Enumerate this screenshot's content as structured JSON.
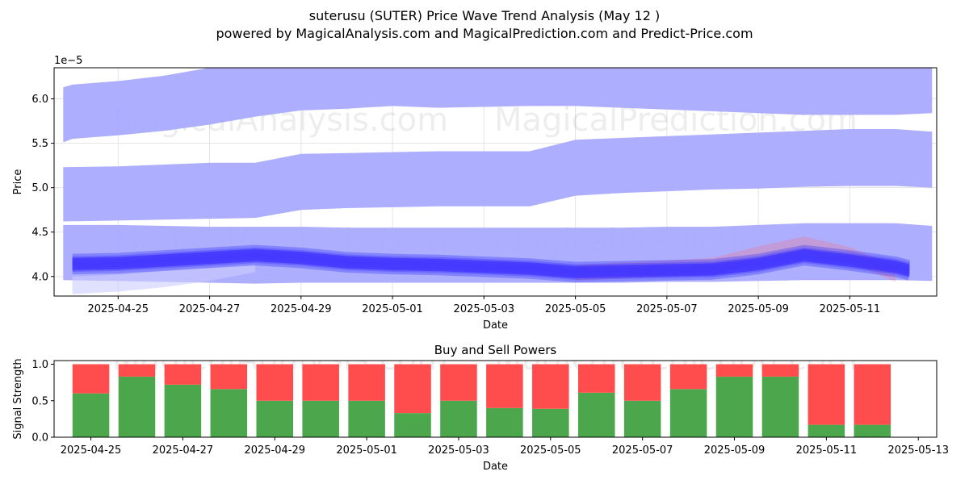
{
  "page": {
    "title": "suterusu (SUTER) Price Wave Trend Analysis (May 12 )",
    "subtitle": "powered by MagicalAnalysis.com and MagicalPrediction.com and Predict-Price.com",
    "watermarks": [
      "MagicalAnalysis.com",
      "MagicalPrediction.com"
    ]
  },
  "chart_data": [
    {
      "type": "area",
      "xlabel": "Date",
      "ylabel": "Price",
      "exponent_label": "1e−5",
      "ylim": [
        3.78,
        6.35
      ],
      "xlim": [
        "2025-04-23.6",
        "2025-05-12.9"
      ],
      "grid": true,
      "yticks": [
        "4.0",
        "4.5",
        "5.0",
        "5.5",
        "6.0"
      ],
      "xticks": [
        "2025-04-25",
        "2025-04-27",
        "2025-04-29",
        "2025-05-01",
        "2025-05-03",
        "2025-05-05",
        "2025-05-07",
        "2025-05-09",
        "2025-05-11"
      ],
      "band_color": "#aaaaff",
      "wave_color": "#3333ff",
      "prediction_color": "#ff6666",
      "bands": [
        {
          "dates": [
            "2025-04-23.8",
            "2025-04-24",
            "2025-04-25",
            "2025-04-26",
            "2025-04-27",
            "2025-04-28",
            "2025-04-29",
            "2025-04-30",
            "2025-05-01",
            "2025-05-02",
            "2025-05-03",
            "2025-05-04",
            "2025-05-05",
            "2025-05-06",
            "2025-05-07",
            "2025-05-08",
            "2025-05-09",
            "2025-05-10",
            "2025-05-11",
            "2025-05-12",
            "2025-05-12.8"
          ],
          "upper": [
            6.13,
            6.16,
            6.2,
            6.26,
            6.35,
            6.4,
            6.4,
            6.4,
            6.4,
            6.4,
            6.4,
            6.4,
            6.4,
            6.4,
            6.4,
            6.4,
            6.4,
            6.4,
            6.4,
            6.4,
            6.36
          ],
          "lower": [
            5.51,
            5.55,
            5.59,
            5.64,
            5.71,
            5.8,
            5.87,
            5.89,
            5.92,
            5.9,
            5.91,
            5.92,
            5.92,
            5.9,
            5.88,
            5.86,
            5.84,
            5.82,
            5.82,
            5.82,
            5.84
          ]
        },
        {
          "dates": [
            "2025-04-23.8",
            "2025-04-25",
            "2025-04-26",
            "2025-04-27",
            "2025-04-28",
            "2025-04-29",
            "2025-04-30",
            "2025-05-01",
            "2025-05-02",
            "2025-05-03",
            "2025-05-04",
            "2025-05-05",
            "2025-05-06",
            "2025-05-07",
            "2025-05-08",
            "2025-05-09",
            "2025-05-10",
            "2025-05-11",
            "2025-05-12",
            "2025-05-12.8"
          ],
          "upper": [
            5.23,
            5.24,
            5.26,
            5.28,
            5.28,
            5.38,
            5.39,
            5.4,
            5.41,
            5.41,
            5.41,
            5.54,
            5.56,
            5.58,
            5.6,
            5.62,
            5.64,
            5.66,
            5.66,
            5.63
          ],
          "lower": [
            4.62,
            4.63,
            4.64,
            4.65,
            4.66,
            4.75,
            4.77,
            4.78,
            4.79,
            4.79,
            4.79,
            4.91,
            4.94,
            4.96,
            4.98,
            4.99,
            5.01,
            5.02,
            5.02,
            5.0
          ]
        },
        {
          "dates": [
            "2025-04-23.8",
            "2025-04-25",
            "2025-04-26",
            "2025-04-27",
            "2025-04-28",
            "2025-04-29",
            "2025-04-30",
            "2025-05-01",
            "2025-05-02",
            "2025-05-03",
            "2025-05-04",
            "2025-05-05",
            "2025-05-06",
            "2025-05-07",
            "2025-05-08",
            "2025-05-09",
            "2025-05-10",
            "2025-05-11",
            "2025-05-12",
            "2025-05-12.8"
          ],
          "upper": [
            4.58,
            4.58,
            4.57,
            4.56,
            4.56,
            4.56,
            4.55,
            4.55,
            4.55,
            4.55,
            4.55,
            4.55,
            4.55,
            4.56,
            4.56,
            4.58,
            4.6,
            4.6,
            4.6,
            4.57
          ],
          "lower": [
            3.96,
            3.95,
            3.94,
            3.93,
            3.92,
            3.93,
            3.93,
            3.93,
            3.93,
            3.93,
            3.93,
            3.93,
            3.93,
            3.94,
            3.94,
            3.95,
            3.96,
            3.96,
            3.96,
            3.95
          ]
        }
      ],
      "series": [
        {
          "dates": [
            "2025-04-24",
            "2025-04-25",
            "2025-04-26",
            "2025-04-27",
            "2025-04-28",
            "2025-04-29",
            "2025-04-30",
            "2025-05-01",
            "2025-05-02",
            "2025-05-03",
            "2025-05-04",
            "2025-05-05",
            "2025-05-06",
            "2025-05-07",
            "2025-05-08",
            "2025-05-09",
            "2025-05-10",
            "2025-05-11",
            "2025-05-12",
            "2025-05-12.3"
          ],
          "values": [
            4.14,
            4.15,
            4.18,
            4.21,
            4.24,
            4.21,
            4.16,
            4.14,
            4.13,
            4.11,
            4.09,
            4.05,
            4.06,
            4.07,
            4.08,
            4.14,
            4.24,
            4.18,
            4.11,
            4.07
          ]
        }
      ],
      "spread": 0.14,
      "prediction": {
        "dates": [
          "2025-05-05",
          "2025-05-06",
          "2025-05-07",
          "2025-05-08",
          "2025-05-09",
          "2025-05-10",
          "2025-05-11",
          "2025-05-12"
        ],
        "values": [
          4.04,
          4.07,
          4.09,
          4.12,
          4.25,
          4.36,
          4.24,
          4.03
        ]
      }
    },
    {
      "type": "bar",
      "title": "Buy and Sell Powers",
      "xlabel": "Date",
      "ylabel": "Signal Strength",
      "ylim": [
        0,
        1.05
      ],
      "xlim": [
        "2025-04-24.2",
        "2025-05-13.4"
      ],
      "yticks": [
        "0.0",
        "0.5",
        "1.0"
      ],
      "xticks": [
        "2025-04-25",
        "2025-04-27",
        "2025-04-29",
        "2025-05-01",
        "2025-05-03",
        "2025-05-05",
        "2025-05-07",
        "2025-05-09",
        "2025-05-11",
        "2025-05-13"
      ],
      "buy_color": "#4ca64c",
      "sell_color": "#ff4c4c",
      "categories": [
        "2025-04-25",
        "2025-04-26",
        "2025-04-27",
        "2025-04-28",
        "2025-04-29",
        "2025-04-30",
        "2025-05-01",
        "2025-05-02",
        "2025-05-03",
        "2025-05-04",
        "2025-05-05",
        "2025-05-06",
        "2025-05-07",
        "2025-05-08",
        "2025-05-09",
        "2025-05-10",
        "2025-05-11",
        "2025-05-12"
      ],
      "series": [
        {
          "values": [
            0.6,
            0.83,
            0.72,
            0.66,
            0.5,
            0.5,
            0.5,
            0.33,
            0.5,
            0.4,
            0.39,
            0.61,
            0.5,
            0.66,
            0.83,
            0.83,
            0.17,
            0.17
          ]
        },
        {
          "values": [
            0.4,
            0.17,
            0.28,
            0.34,
            0.5,
            0.5,
            0.5,
            0.67,
            0.5,
            0.6,
            0.61,
            0.39,
            0.5,
            0.34,
            0.17,
            0.17,
            0.83,
            0.83
          ]
        }
      ]
    }
  ]
}
